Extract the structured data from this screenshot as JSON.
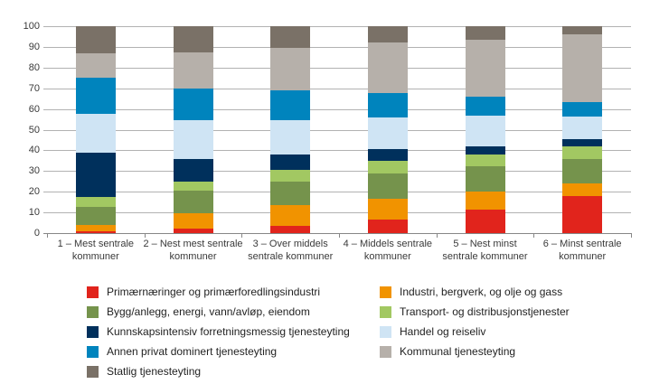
{
  "chart_data": {
    "type": "bar",
    "stacked": true,
    "percent_axis": true,
    "title": "",
    "xlabel": "",
    "ylabel": "",
    "ylim": [
      0,
      100
    ],
    "y_ticks": [
      0,
      10,
      20,
      30,
      40,
      50,
      60,
      70,
      80,
      90,
      100
    ],
    "grid": true,
    "legend_position": "bottom",
    "legend_columns": 2,
    "categories": [
      "1 – Mest sentrale kommuner",
      "2 – Nest mest sentrale kommuner",
      "3 – Over middels sentrale kommuner",
      "4 – Middels sentrale kommuner",
      "5 – Nest minst sentrale kommuner",
      "6 – Minst sentrale kommuner"
    ],
    "series": [
      {
        "name": "Primærnæringer og primærforedlingsindustri",
        "color": "#e1241c",
        "values": [
          1,
          2,
          3.5,
          6.5,
          11.5,
          18
        ]
      },
      {
        "name": "Industri, bergverk, og olje og gass",
        "color": "#f19300",
        "values": [
          3,
          7.5,
          10,
          10,
          8.5,
          6
        ]
      },
      {
        "name": "Bygg/anlegg, energi, vann/avløp, eiendom",
        "color": "#75934c",
        "values": [
          8.5,
          11,
          11.5,
          12.5,
          12.5,
          12
        ]
      },
      {
        "name": "Transport- og distribusjonstjenester",
        "color": "#a2c862",
        "values": [
          5,
          4.5,
          5.5,
          6,
          5.5,
          6
        ]
      },
      {
        "name": "Kunnskapsintensiv forretningsmessig tjenesteyting",
        "color": "#00305c",
        "values": [
          21.5,
          11,
          7.5,
          5.5,
          4,
          3.5
        ]
      },
      {
        "name": "Handel og reiseliv",
        "color": "#cfe4f4",
        "values": [
          18.5,
          18.5,
          16.5,
          15.5,
          15,
          11
        ]
      },
      {
        "name": "Annen privat dominert tjenesteyting",
        "color": "#0084bd",
        "values": [
          17.5,
          15.5,
          14.5,
          11.5,
          9,
          7
        ]
      },
      {
        "name": "Kommunal tjenesteyting",
        "color": "#b6b0aa",
        "values": [
          12,
          17.5,
          20.5,
          24.5,
          27.5,
          32.5
        ]
      },
      {
        "name": "Statlig tjenesteyting",
        "color": "#7a7167",
        "values": [
          13,
          12.5,
          10.5,
          8,
          6.5,
          4
        ]
      }
    ]
  },
  "colors": {
    "background": "#ffffff",
    "gridline": "#b2b2b2",
    "axis_line": "#878787",
    "tick_text": "#3a3a3a",
    "legend_text": "#222222"
  }
}
